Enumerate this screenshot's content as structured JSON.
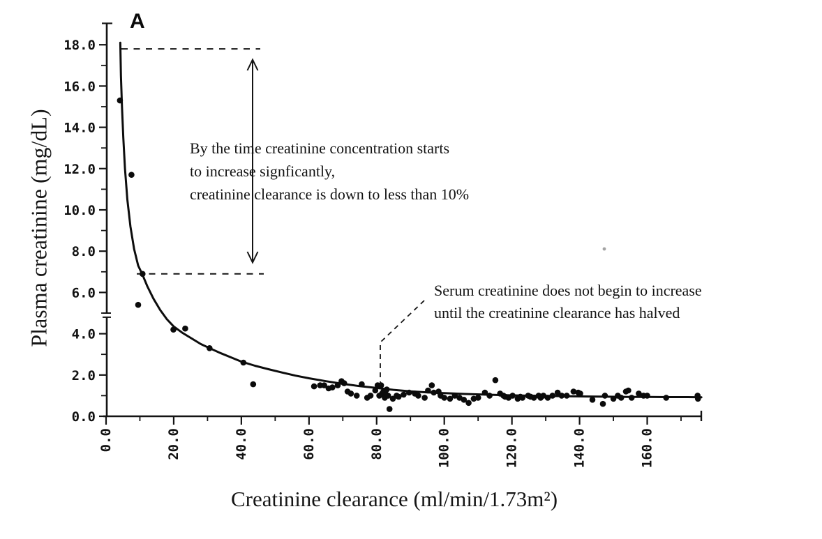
{
  "page": {
    "background": "#ffffff"
  },
  "panel_label": "A",
  "chart_data": {
    "type": "scatter",
    "title": "",
    "xlabel": "Creatinine clearance (ml/min/1.73m²)",
    "ylabel": "Plasma creatinine (mg/dL)",
    "xlim": [
      0,
      176
    ],
    "ylim": [
      0,
      19
    ],
    "grid": false,
    "legend": "none",
    "axis_color": "#141414",
    "point_color": "#0b0b0b",
    "curve_color": "#0d0d0d",
    "x_tick_values": [
      0,
      20,
      40,
      60,
      80,
      100,
      120,
      140,
      160
    ],
    "x_tick_labels": [
      "0.0",
      "20.0",
      "40.0",
      "60.0",
      "80.0",
      "100.0",
      "120.0",
      "140.0",
      "160.0"
    ],
    "x_minor_tick_values": [
      10,
      30,
      50,
      70,
      90,
      110,
      130,
      150,
      170
    ],
    "y_tick_values": [
      0,
      2,
      4,
      6,
      8,
      10,
      12,
      14,
      16,
      18
    ],
    "y_tick_labels": [
      "0.0",
      "2.0",
      "4.0",
      "6.0",
      "8.0",
      "10.0",
      "12.0",
      "14.0",
      "16.0",
      "18.0"
    ],
    "y_minor_tick_values": [
      1,
      3,
      5,
      7,
      9,
      11,
      13,
      15,
      17
    ],
    "y_axis_break": [
      4.8,
      5.0
    ],
    "points": [
      [
        4.1,
        15.3
      ],
      [
        7.5,
        11.7
      ],
      [
        9.5,
        5.4
      ],
      [
        10.8,
        6.9
      ],
      [
        19.9,
        4.2
      ],
      [
        23.4,
        4.25
      ],
      [
        30.6,
        3.3
      ],
      [
        40.6,
        2.6
      ],
      [
        43.5,
        1.55
      ],
      [
        61.5,
        1.45
      ],
      [
        63.3,
        1.5
      ],
      [
        64.5,
        1.5
      ],
      [
        65.8,
        1.35
      ],
      [
        66.9,
        1.4
      ],
      [
        68.5,
        1.5
      ],
      [
        69.6,
        1.7
      ],
      [
        70.4,
        1.6
      ],
      [
        71.4,
        1.2
      ],
      [
        72.4,
        1.1
      ],
      [
        74.1,
        1.0
      ],
      [
        75.6,
        1.55
      ],
      [
        77.2,
        0.9
      ],
      [
        78.2,
        1.0
      ],
      [
        79.6,
        1.25
      ],
      [
        80.3,
        1.5
      ],
      [
        80.8,
        1.0
      ],
      [
        81.3,
        1.5
      ],
      [
        81.6,
        1.1
      ],
      [
        82.0,
        1.2
      ],
      [
        82.4,
        0.9
      ],
      [
        82.8,
        1.05
      ],
      [
        83.0,
        1.3
      ],
      [
        83.4,
        1.0
      ],
      [
        83.8,
        0.35
      ],
      [
        84.8,
        0.85
      ],
      [
        85.9,
        1.0
      ],
      [
        86.5,
        0.95
      ],
      [
        88.0,
        1.05
      ],
      [
        89.6,
        1.15
      ],
      [
        91.3,
        1.1
      ],
      [
        92.3,
        1.0
      ],
      [
        94.2,
        0.9
      ],
      [
        95.2,
        1.25
      ],
      [
        96.3,
        1.5
      ],
      [
        96.9,
        1.15
      ],
      [
        98.3,
        1.2
      ],
      [
        98.9,
        1.0
      ],
      [
        100.0,
        0.9
      ],
      [
        101.7,
        0.85
      ],
      [
        103.1,
        1.0
      ],
      [
        104.5,
        0.9
      ],
      [
        105.8,
        0.8
      ],
      [
        107.2,
        0.65
      ],
      [
        108.7,
        0.85
      ],
      [
        110.0,
        0.9
      ],
      [
        112.0,
        1.15
      ],
      [
        113.4,
        1.0
      ],
      [
        115.1,
        1.75
      ],
      [
        116.5,
        1.1
      ],
      [
        117.5,
        1.0
      ],
      [
        118.0,
        0.95
      ],
      [
        119.0,
        0.9
      ],
      [
        120.2,
        1.0
      ],
      [
        121.7,
        0.85
      ],
      [
        122.5,
        0.95
      ],
      [
        123.1,
        0.9
      ],
      [
        124.8,
        1.0
      ],
      [
        125.5,
        0.95
      ],
      [
        126.5,
        0.9
      ],
      [
        127.9,
        1.0
      ],
      [
        128.5,
        0.9
      ],
      [
        129.3,
        1.0
      ],
      [
        130.6,
        0.9
      ],
      [
        132.0,
        1.0
      ],
      [
        133.5,
        1.15
      ],
      [
        134.7,
        1.0
      ],
      [
        136.2,
        1.0
      ],
      [
        138.2,
        1.2
      ],
      [
        139.6,
        1.15
      ],
      [
        140.2,
        1.1
      ],
      [
        143.8,
        0.8
      ],
      [
        146.9,
        0.6
      ],
      [
        147.5,
        1.0
      ],
      [
        150.0,
        0.85
      ],
      [
        151.3,
        1.0
      ],
      [
        152.3,
        0.9
      ],
      [
        153.7,
        1.2
      ],
      [
        154.4,
        1.25
      ],
      [
        155.4,
        0.9
      ],
      [
        157.5,
        1.1
      ],
      [
        158.9,
        1.0
      ],
      [
        160.0,
        1.0
      ],
      [
        165.6,
        0.9
      ],
      [
        174.9,
        1.0
      ],
      [
        175.0,
        0.85
      ]
    ],
    "fit_curve": [
      [
        4.2,
        18.1
      ],
      [
        4.4,
        16.5
      ],
      [
        4.7,
        15.0
      ],
      [
        5.1,
        13.5
      ],
      [
        5.6,
        12.0
      ],
      [
        6.3,
        10.5
      ],
      [
        7.2,
        9.2
      ],
      [
        8.3,
        8.1
      ],
      [
        9.5,
        7.3
      ],
      [
        10.8,
        6.85
      ],
      [
        12.2,
        6.3
      ],
      [
        14,
        5.7
      ],
      [
        16,
        5.15
      ],
      [
        18,
        4.7
      ],
      [
        20,
        4.35
      ],
      [
        22.5,
        4.05
      ],
      [
        25,
        3.8
      ],
      [
        28,
        3.5
      ],
      [
        31,
        3.27
      ],
      [
        34,
        3.05
      ],
      [
        37,
        2.85
      ],
      [
        40,
        2.65
      ],
      [
        44,
        2.45
      ],
      [
        48,
        2.28
      ],
      [
        52,
        2.12
      ],
      [
        56,
        1.97
      ],
      [
        60,
        1.84
      ],
      [
        65,
        1.7
      ],
      [
        70,
        1.57
      ],
      [
        75,
        1.46
      ],
      [
        80,
        1.37
      ],
      [
        85,
        1.28
      ],
      [
        90,
        1.21
      ],
      [
        95,
        1.16
      ],
      [
        100,
        1.12
      ],
      [
        106,
        1.08
      ],
      [
        112,
        1.05
      ],
      [
        118,
        1.02
      ],
      [
        124,
        1.0
      ],
      [
        130,
        0.99
      ],
      [
        136,
        0.97
      ],
      [
        142,
        0.96
      ],
      [
        148,
        0.95
      ],
      [
        154,
        0.94
      ],
      [
        160,
        0.94
      ],
      [
        166,
        0.93
      ],
      [
        172,
        0.93
      ],
      [
        176,
        0.92
      ]
    ]
  },
  "annotations": {
    "range_note": {
      "lines": [
        "By the time creatinine concentration starts",
        "to increase signficantly,",
        "creatinine clearance is down to less than 10%"
      ],
      "upper_dashed_y": 17.8,
      "lower_dashed_y": 6.9,
      "arrow": "double-headed-vertical"
    },
    "halved_note": {
      "lines": [
        "Serum creatinine does not begin to increase",
        "until the creatinine clearance has halved"
      ],
      "leader_target_x": 81
    }
  }
}
